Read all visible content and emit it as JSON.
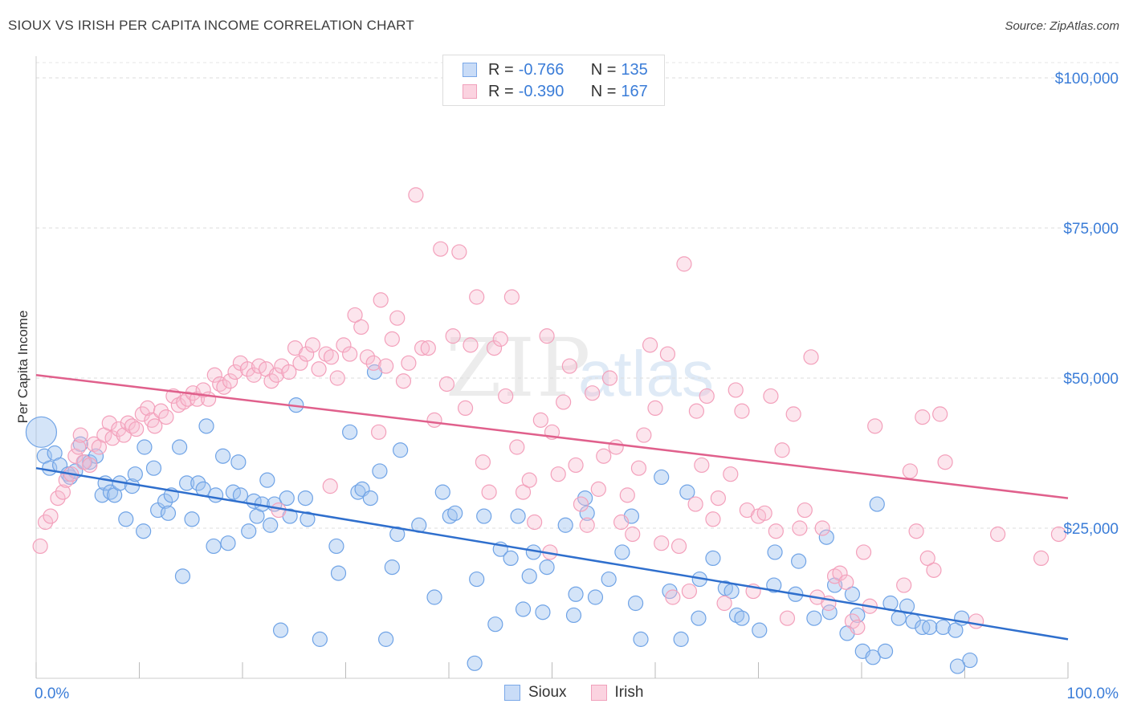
{
  "title": "SIOUX VS IRISH PER CAPITA INCOME CORRELATION CHART",
  "source": "Source: ZipAtlas.com",
  "watermark": {
    "zip": "ZIP",
    "atlas": "atlas"
  },
  "colors": {
    "sioux": "#6fa3e6",
    "irish": "#f3a0bb",
    "sioux_line": "#2f6fcd",
    "irish_line": "#e0608c",
    "axis_text": "#3b7dd8"
  },
  "legend": {
    "rows": [
      {
        "r_label": "R =",
        "r_value": "-0.766",
        "n_label": "N =",
        "n_value": "135"
      },
      {
        "r_label": "R =",
        "r_value": "-0.390",
        "n_label": "N =",
        "n_value": "167"
      }
    ]
  },
  "bottom_legend": {
    "sioux": "Sioux",
    "irish": "Irish"
  },
  "chart_data": {
    "type": "scatter",
    "title": "SIOUX VS IRISH PER CAPITA INCOME CORRELATION CHART",
    "xlabel": "",
    "ylabel": "Per Capita Income",
    "xlim": [
      0,
      100
    ],
    "ylim": [
      0,
      105000
    ],
    "x_tick_labels": [
      "0.0%",
      "100.0%"
    ],
    "y_ticks": [
      25000,
      50000,
      75000,
      100000
    ],
    "y_tick_labels": [
      "$25,000",
      "$50,000",
      "$75,000",
      "$100,000"
    ],
    "grid": true,
    "legend_position": "top-center",
    "series": [
      {
        "name": "Sioux",
        "trend": {
          "x": [
            0,
            100
          ],
          "y": [
            35000,
            6500
          ]
        },
        "points": [
          [
            0.5,
            41000
          ],
          [
            0.8,
            37000
          ],
          [
            1.3,
            35000
          ],
          [
            1.8,
            37500
          ],
          [
            2.3,
            35500
          ],
          [
            3.1,
            34000
          ],
          [
            3.3,
            33500
          ],
          [
            3.8,
            34500
          ],
          [
            4.3,
            39000
          ],
          [
            4.7,
            36000
          ],
          [
            5.2,
            36000
          ],
          [
            5.8,
            37000
          ],
          [
            6.4,
            30500
          ],
          [
            6.7,
            32500
          ],
          [
            7.2,
            31000
          ],
          [
            7.6,
            30500
          ],
          [
            8.1,
            32500
          ],
          [
            8.7,
            26500
          ],
          [
            9.3,
            32000
          ],
          [
            9.6,
            34000
          ],
          [
            10.4,
            24500
          ],
          [
            10.5,
            38500
          ],
          [
            11.4,
            35000
          ],
          [
            11.8,
            28000
          ],
          [
            12.5,
            29500
          ],
          [
            12.8,
            27500
          ],
          [
            13.1,
            30500
          ],
          [
            13.9,
            38500
          ],
          [
            14.2,
            17000
          ],
          [
            14.6,
            32500
          ],
          [
            15.1,
            26500
          ],
          [
            15.7,
            32500
          ],
          [
            16.2,
            31500
          ],
          [
            16.5,
            42000
          ],
          [
            17.2,
            22000
          ],
          [
            17.4,
            30500
          ],
          [
            18.1,
            37000
          ],
          [
            18.6,
            22500
          ],
          [
            19.1,
            31000
          ],
          [
            19.6,
            36000
          ],
          [
            19.8,
            30500
          ],
          [
            20.6,
            24500
          ],
          [
            21.1,
            29500
          ],
          [
            21.4,
            27000
          ],
          [
            21.9,
            29000
          ],
          [
            22.4,
            33000
          ],
          [
            22.7,
            25500
          ],
          [
            23.1,
            29000
          ],
          [
            23.7,
            8000
          ],
          [
            24.3,
            30000
          ],
          [
            24.6,
            27000
          ],
          [
            25.2,
            45500
          ],
          [
            26.1,
            30000
          ],
          [
            26.3,
            26500
          ],
          [
            27.5,
            6500
          ],
          [
            29.3,
            17500
          ],
          [
            29.1,
            22000
          ],
          [
            30.4,
            41000
          ],
          [
            31.2,
            31000
          ],
          [
            31.6,
            31500
          ],
          [
            32.4,
            30000
          ],
          [
            32.8,
            51000
          ],
          [
            33.3,
            34500
          ],
          [
            33.9,
            6500
          ],
          [
            34.5,
            18500
          ],
          [
            35.0,
            24000
          ],
          [
            35.3,
            38000
          ],
          [
            37.1,
            25500
          ],
          [
            38.6,
            13500
          ],
          [
            39.4,
            31000
          ],
          [
            40.1,
            27000
          ],
          [
            40.6,
            27500
          ],
          [
            42.5,
            2500
          ],
          [
            42.7,
            16500
          ],
          [
            43.4,
            27000
          ],
          [
            44.5,
            9000
          ],
          [
            45.0,
            21500
          ],
          [
            46.0,
            20000
          ],
          [
            46.7,
            27000
          ],
          [
            47.2,
            11500
          ],
          [
            47.8,
            17000
          ],
          [
            48.2,
            21000
          ],
          [
            49.1,
            11000
          ],
          [
            49.5,
            18500
          ],
          [
            51.3,
            25500
          ],
          [
            52.1,
            10500
          ],
          [
            52.3,
            14000
          ],
          [
            53.2,
            30000
          ],
          [
            53.4,
            27500
          ],
          [
            54.2,
            13500
          ],
          [
            55.5,
            16500
          ],
          [
            56.8,
            21000
          ],
          [
            57.7,
            27000
          ],
          [
            58.1,
            12500
          ],
          [
            58.6,
            6500
          ],
          [
            60.6,
            33500
          ],
          [
            61.4,
            14500
          ],
          [
            62.5,
            6500
          ],
          [
            63.1,
            31000
          ],
          [
            64.2,
            10000
          ],
          [
            64.3,
            16500
          ],
          [
            65.6,
            20000
          ],
          [
            66.8,
            15000
          ],
          [
            67.4,
            14500
          ],
          [
            67.9,
            10500
          ],
          [
            68.4,
            10000
          ],
          [
            70.1,
            8000
          ],
          [
            71.5,
            15500
          ],
          [
            71.6,
            21000
          ],
          [
            73.6,
            14000
          ],
          [
            73.9,
            19500
          ],
          [
            75.4,
            10000
          ],
          [
            76.6,
            23500
          ],
          [
            76.9,
            11000
          ],
          [
            77.4,
            15500
          ],
          [
            78.6,
            7500
          ],
          [
            79.1,
            14000
          ],
          [
            79.6,
            10500
          ],
          [
            80.1,
            4500
          ],
          [
            81.1,
            3500
          ],
          [
            81.5,
            29000
          ],
          [
            82.3,
            4500
          ],
          [
            82.8,
            12500
          ],
          [
            83.6,
            10000
          ],
          [
            84.4,
            12000
          ],
          [
            85.0,
            9500
          ],
          [
            85.9,
            8500
          ],
          [
            86.6,
            8500
          ],
          [
            87.9,
            8500
          ],
          [
            89.1,
            8000
          ],
          [
            89.3,
            2000
          ],
          [
            89.7,
            10000
          ],
          [
            90.5,
            3000
          ]
        ]
      },
      {
        "name": "Irish",
        "trend": {
          "x": [
            0,
            100
          ],
          "y": [
            50500,
            30000
          ]
        },
        "points": [
          [
            0.4,
            22000
          ],
          [
            0.9,
            26000
          ],
          [
            1.4,
            27000
          ],
          [
            2.1,
            30000
          ],
          [
            2.6,
            31000
          ],
          [
            2.9,
            33000
          ],
          [
            3.4,
            34000
          ],
          [
            3.8,
            37000
          ],
          [
            4.1,
            38500
          ],
          [
            4.3,
            40500
          ],
          [
            4.6,
            36000
          ],
          [
            5.2,
            35500
          ],
          [
            5.6,
            39000
          ],
          [
            6.1,
            38500
          ],
          [
            6.6,
            40500
          ],
          [
            7.1,
            42500
          ],
          [
            7.4,
            40000
          ],
          [
            8.0,
            41500
          ],
          [
            8.5,
            40500
          ],
          [
            8.9,
            42500
          ],
          [
            9.3,
            42000
          ],
          [
            9.7,
            41500
          ],
          [
            10.3,
            44000
          ],
          [
            10.8,
            45000
          ],
          [
            11.2,
            43000
          ],
          [
            11.5,
            42000
          ],
          [
            12.1,
            44500
          ],
          [
            12.6,
            43500
          ],
          [
            13.3,
            47000
          ],
          [
            13.8,
            45500
          ],
          [
            14.3,
            46000
          ],
          [
            14.7,
            46500
          ],
          [
            15.2,
            47500
          ],
          [
            15.6,
            46500
          ],
          [
            16.2,
            48000
          ],
          [
            16.7,
            46500
          ],
          [
            17.3,
            50500
          ],
          [
            17.8,
            49000
          ],
          [
            18.2,
            48500
          ],
          [
            18.8,
            49500
          ],
          [
            19.3,
            51000
          ],
          [
            19.8,
            52500
          ],
          [
            20.5,
            51500
          ],
          [
            21.1,
            50500
          ],
          [
            21.6,
            52000
          ],
          [
            22.3,
            51500
          ],
          [
            22.8,
            49500
          ],
          [
            23.3,
            50500
          ],
          [
            23.8,
            52000
          ],
          [
            24.5,
            51000
          ],
          [
            25.1,
            55000
          ],
          [
            25.6,
            52500
          ],
          [
            26.2,
            54000
          ],
          [
            26.8,
            55500
          ],
          [
            27.4,
            51500
          ],
          [
            28.1,
            54000
          ],
          [
            28.6,
            53500
          ],
          [
            29.2,
            50000
          ],
          [
            29.8,
            55500
          ],
          [
            30.4,
            54000
          ],
          [
            30.9,
            60500
          ],
          [
            31.5,
            58500
          ],
          [
            32.1,
            53500
          ],
          [
            32.7,
            52500
          ],
          [
            33.4,
            63000
          ],
          [
            33.9,
            52000
          ],
          [
            34.5,
            56500
          ],
          [
            35.0,
            60000
          ],
          [
            35.6,
            49500
          ],
          [
            36.1,
            52500
          ],
          [
            36.8,
            80500
          ],
          [
            37.4,
            55000
          ],
          [
            38.0,
            55000
          ],
          [
            38.6,
            43000
          ],
          [
            39.2,
            71500
          ],
          [
            39.8,
            49000
          ],
          [
            40.4,
            57000
          ],
          [
            41.0,
            71000
          ],
          [
            41.6,
            45000
          ],
          [
            42.1,
            55500
          ],
          [
            42.7,
            63500
          ],
          [
            43.3,
            36000
          ],
          [
            43.9,
            31000
          ],
          [
            44.4,
            55000
          ],
          [
            45.0,
            56500
          ],
          [
            45.5,
            47000
          ],
          [
            46.1,
            63500
          ],
          [
            46.6,
            38500
          ],
          [
            47.2,
            31000
          ],
          [
            47.8,
            33000
          ],
          [
            48.3,
            26000
          ],
          [
            48.9,
            43000
          ],
          [
            49.5,
            57000
          ],
          [
            50.0,
            41000
          ],
          [
            50.6,
            34000
          ],
          [
            51.1,
            46000
          ],
          [
            51.7,
            52000
          ],
          [
            52.3,
            35500
          ],
          [
            52.8,
            29000
          ],
          [
            53.4,
            25500
          ],
          [
            53.9,
            47500
          ],
          [
            54.5,
            31500
          ],
          [
            55.0,
            37000
          ],
          [
            55.6,
            50000
          ],
          [
            56.2,
            38500
          ],
          [
            56.7,
            26000
          ],
          [
            57.3,
            30500
          ],
          [
            57.8,
            24000
          ],
          [
            58.4,
            35000
          ],
          [
            58.9,
            40500
          ],
          [
            59.5,
            55500
          ],
          [
            60.0,
            45000
          ],
          [
            60.6,
            22500
          ],
          [
            61.2,
            54000
          ],
          [
            61.7,
            13500
          ],
          [
            62.3,
            22000
          ],
          [
            62.8,
            69000
          ],
          [
            63.3,
            14500
          ],
          [
            63.9,
            29000
          ],
          [
            64.5,
            35500
          ],
          [
            65.0,
            47000
          ],
          [
            65.6,
            26500
          ],
          [
            66.1,
            30000
          ],
          [
            66.7,
            12500
          ],
          [
            67.3,
            34000
          ],
          [
            67.8,
            48000
          ],
          [
            68.4,
            44500
          ],
          [
            68.9,
            28000
          ],
          [
            69.5,
            14500
          ],
          [
            70.0,
            27000
          ],
          [
            70.6,
            27500
          ],
          [
            71.2,
            47000
          ],
          [
            71.7,
            24500
          ],
          [
            72.3,
            38000
          ],
          [
            72.8,
            10000
          ],
          [
            73.4,
            44000
          ],
          [
            74.0,
            25000
          ],
          [
            74.5,
            28000
          ],
          [
            75.1,
            53500
          ],
          [
            75.7,
            13500
          ],
          [
            76.2,
            25000
          ],
          [
            76.8,
            12500
          ],
          [
            77.4,
            17000
          ],
          [
            77.9,
            17500
          ],
          [
            78.5,
            16000
          ],
          [
            79.1,
            9500
          ],
          [
            79.6,
            8500
          ],
          [
            80.2,
            21000
          ],
          [
            80.8,
            12000
          ],
          [
            81.3,
            42000
          ],
          [
            84.1,
            15500
          ],
          [
            84.7,
            34500
          ],
          [
            85.3,
            24500
          ],
          [
            85.9,
            43500
          ],
          [
            86.4,
            20000
          ],
          [
            87.0,
            18000
          ],
          [
            87.6,
            44000
          ],
          [
            88.1,
            36000
          ],
          [
            91.1,
            9500
          ],
          [
            93.2,
            24000
          ],
          [
            97.4,
            20000
          ],
          [
            99.1,
            24000
          ],
          [
            64.0,
            44500
          ],
          [
            33.2,
            41000
          ],
          [
            23.5,
            28000
          ],
          [
            28.5,
            32000
          ],
          [
            49.8,
            21000
          ]
        ]
      }
    ]
  }
}
